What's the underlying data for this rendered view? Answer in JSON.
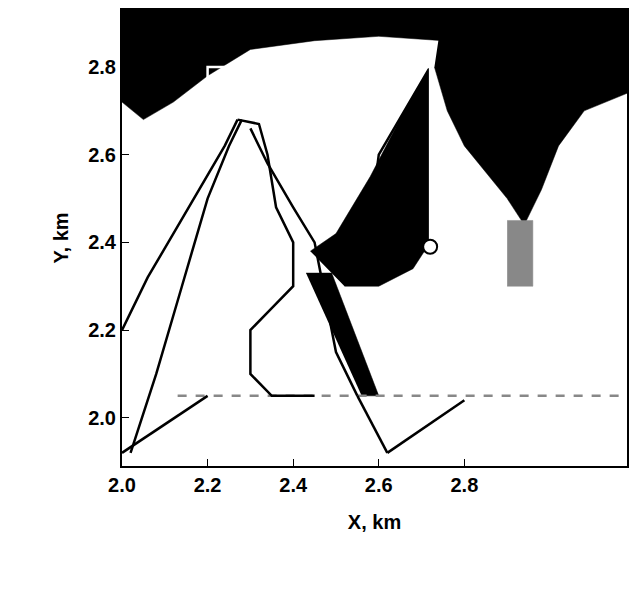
{
  "chart_data": {
    "type": "line",
    "x_label": "X, km",
    "y_label": "Y, km",
    "xlim": [
      2.0,
      3.18
    ],
    "ylim": [
      1.89,
      2.93
    ],
    "xticks": [
      {
        "value": 2.0,
        "label": "2.0"
      },
      2.2,
      2.4,
      2.6,
      2.8
    ],
    "yticks": [
      {
        "value": 2.0,
        "label": "2.0"
      },
      2.2,
      2.4,
      2.6,
      2.8
    ],
    "grid": false,
    "series": [
      {
        "type": "area",
        "color": "#000000",
        "x": [
          2.0,
          2.0,
          2.05,
          2.12,
          2.2,
          2.3,
          2.45,
          2.6,
          2.75,
          2.8
        ],
        "values": [
          2.93,
          2.72,
          2.68,
          2.72,
          2.78,
          2.84,
          2.86,
          2.87,
          2.86,
          2.93
        ]
      },
      {
        "type": "area",
        "color": "#000000",
        "x": [
          2.75,
          3.18,
          3.18,
          3.08,
          3.02,
          2.98,
          2.94,
          2.9,
          2.85,
          2.8,
          2.76,
          2.73
        ],
        "values": [
          2.93,
          2.93,
          2.74,
          2.7,
          2.62,
          2.52,
          2.44,
          2.5,
          2.56,
          2.62,
          2.7,
          2.8
        ]
      },
      {
        "type": "area",
        "color": "#000000",
        "x": [
          2.44,
          2.5,
          2.58,
          2.66,
          2.72,
          2.72,
          2.68,
          2.6,
          2.52
        ],
        "values": [
          2.38,
          2.42,
          2.55,
          2.7,
          2.8,
          2.4,
          2.34,
          2.3,
          2.3
        ]
      },
      {
        "type": "area",
        "color": "#000000",
        "x": [
          2.43,
          2.49,
          2.6,
          2.56
        ],
        "values": [
          2.33,
          2.33,
          2.05,
          2.05
        ]
      },
      {
        "type": "area",
        "color": "#888888",
        "x": [
          2.9,
          2.96,
          2.96,
          2.9
        ],
        "values": [
          2.3,
          2.3,
          2.45,
          2.45
        ]
      },
      {
        "type": "line",
        "color": "#888888",
        "line_style": "dashed",
        "x": [
          2.13,
          3.18
        ],
        "values": [
          2.05,
          2.05
        ]
      },
      {
        "type": "line",
        "color": "#000000",
        "x": [
          2.0,
          2.2
        ],
        "values": [
          1.92,
          2.05
        ]
      },
      {
        "type": "line",
        "color": "#000000",
        "x": [
          2.62,
          2.8
        ],
        "values": [
          1.92,
          2.04
        ]
      },
      {
        "type": "line",
        "color": "#000000",
        "x": [
          2.62,
          2.55
        ],
        "values": [
          1.92,
          2.05
        ]
      },
      {
        "type": "line",
        "color": "#000000",
        "x": [
          2.02,
          2.08,
          2.14,
          2.2,
          2.25,
          2.28
        ],
        "values": [
          1.92,
          2.1,
          2.3,
          2.5,
          2.62,
          2.68
        ]
      },
      {
        "type": "line",
        "color": "#000000",
        "x": [
          2.0,
          2.06,
          2.12,
          2.18,
          2.24,
          2.27
        ],
        "values": [
          2.2,
          2.32,
          2.42,
          2.52,
          2.62,
          2.68
        ]
      },
      {
        "type": "line",
        "color": "#000000",
        "x": [
          2.27,
          2.32,
          2.34,
          2.36,
          2.4,
          2.4,
          2.35,
          2.3,
          2.3,
          2.35,
          2.45
        ],
        "values": [
          2.68,
          2.67,
          2.6,
          2.48,
          2.4,
          2.3,
          2.25,
          2.2,
          2.1,
          2.05,
          2.05
        ]
      },
      {
        "type": "line",
        "color": "#000000",
        "x": [
          2.3,
          2.34,
          2.4,
          2.45,
          2.47,
          2.5,
          2.55
        ],
        "values": [
          2.66,
          2.58,
          2.48,
          2.4,
          2.3,
          2.15,
          2.05
        ]
      },
      {
        "type": "line",
        "color": "#000000",
        "x": [
          2.72,
          2.66,
          2.6,
          2.58,
          2.62,
          2.7,
          2.72
        ],
        "values": [
          2.8,
          2.7,
          2.6,
          2.45,
          2.36,
          2.38,
          2.4
        ]
      },
      {
        "type": "line",
        "color": "#ffffff",
        "x": [
          2.2,
          2.2,
          2.72,
          2.72
        ],
        "values": [
          2.72,
          2.8,
          2.8,
          2.4
        ]
      },
      {
        "type": "scatter",
        "color": "#000000",
        "marker": "circle",
        "x": [
          2.72
        ],
        "values": [
          2.39
        ]
      }
    ]
  }
}
